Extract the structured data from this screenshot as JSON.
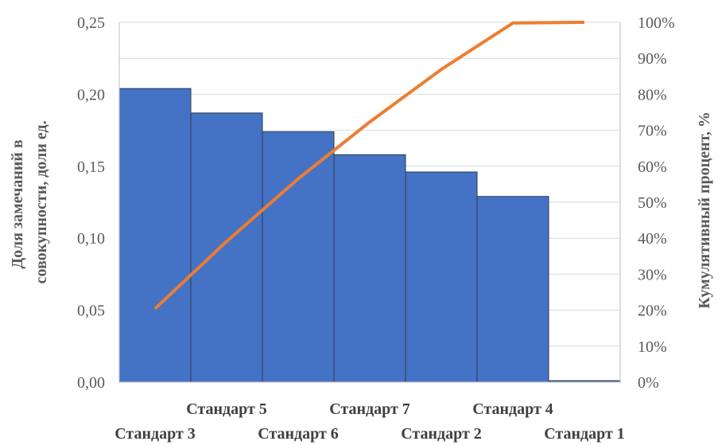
{
  "chart_data": {
    "type": "bar",
    "title": "",
    "categories": [
      "Стандарт 3",
      "Стандарт 5",
      "Стандарт 6",
      "Стандарт 7",
      "Стандарт 2",
      "Стандарт 4",
      "Стандарт 1"
    ],
    "series": [
      {
        "type": "bar",
        "axis": "left",
        "color": "#4472C4",
        "values": [
          0.204,
          0.187,
          0.174,
          0.158,
          0.146,
          0.129,
          0.001
        ]
      },
      {
        "type": "line",
        "axis": "right",
        "color": "#ED7D31",
        "values": [
          20.4,
          39.1,
          56.5,
          72.3,
          86.9,
          99.8,
          100
        ]
      }
    ],
    "ylabel": "Доля замечаний в совокупности, доли ед.",
    "ylabel_lines": [
      "Доля замечаний в",
      "совокупности, доли ед."
    ],
    "y2label": "Кумулятивный процент, %",
    "ylim": [
      0,
      0.25
    ],
    "y2lim": [
      0,
      100
    ],
    "y_ticks": [
      "0,00",
      "0,05",
      "0,10",
      "0,15",
      "0,20",
      "0,25"
    ],
    "y2_ticks": [
      "0%",
      "10%",
      "20%",
      "30%",
      "40%",
      "50%",
      "60%",
      "70%",
      "80%",
      "90%",
      "100%"
    ],
    "grid": true,
    "legend": "none"
  }
}
